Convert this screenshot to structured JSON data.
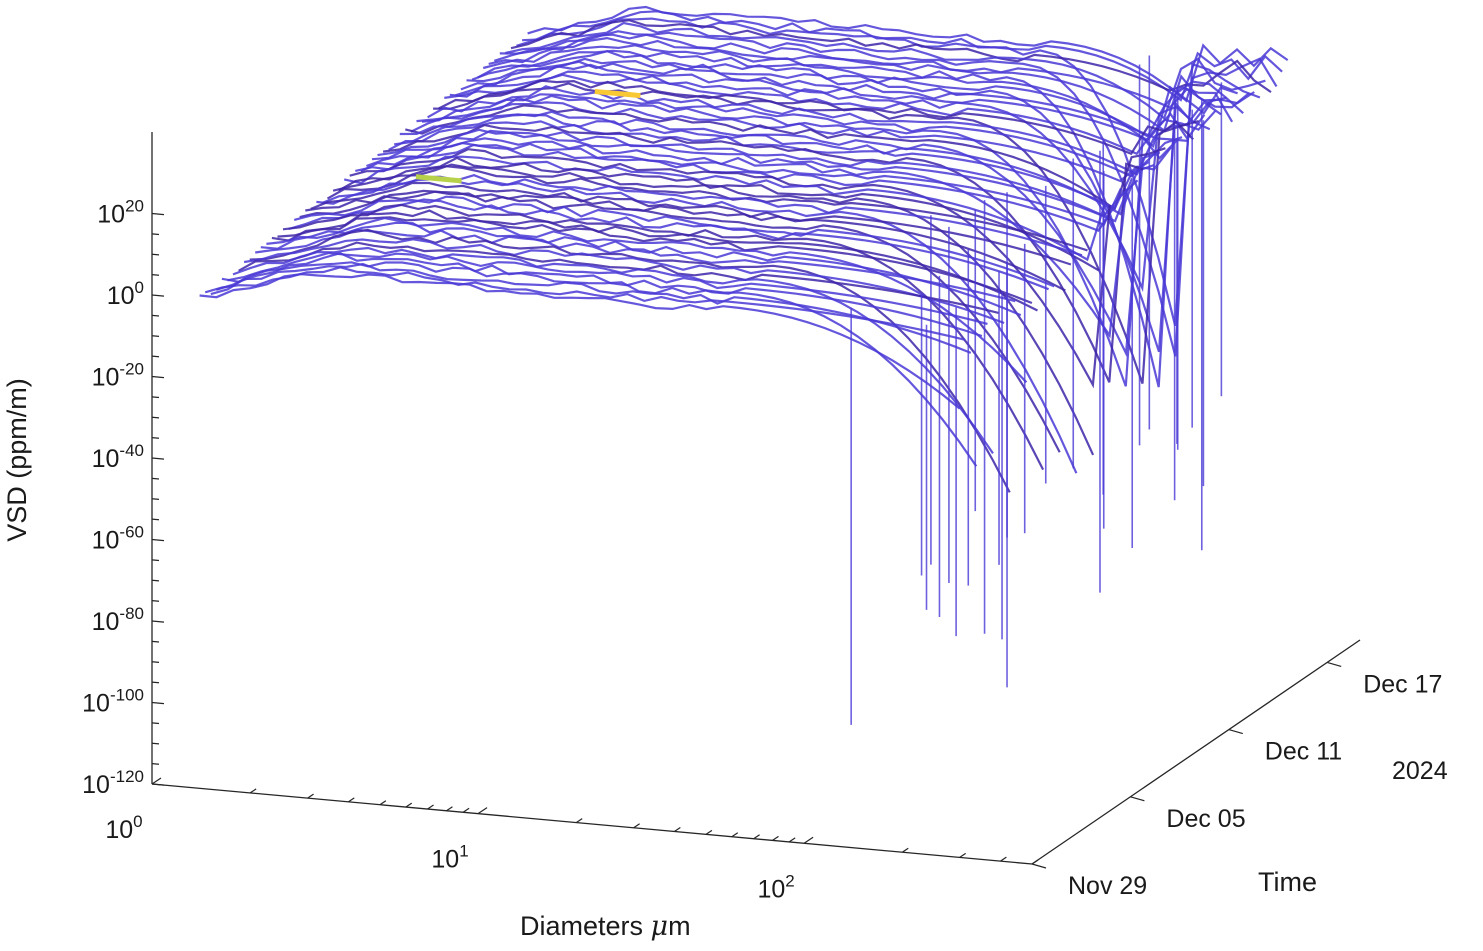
{
  "chart_data": {
    "type": "surface",
    "x_label_text": "Diameters ",
    "x_label_unit": "m",
    "x_label_mu": "μ",
    "ylabel": "Time",
    "zlabel": "VSD (ppm/m)",
    "z_scale": "log",
    "x_scale": "log",
    "z_ticks": [
      {
        "base": "10",
        "exp": "20"
      },
      {
        "base": "10",
        "exp": "0"
      },
      {
        "base": "10",
        "exp": "-20"
      },
      {
        "base": "10",
        "exp": "-40"
      },
      {
        "base": "10",
        "exp": "-60"
      },
      {
        "base": "10",
        "exp": "-80"
      },
      {
        "base": "10",
        "exp": "-100"
      },
      {
        "base": "10",
        "exp": "-120"
      }
    ],
    "x_ticks": [
      {
        "base": "10",
        "exp": "0"
      },
      {
        "base": "10",
        "exp": "1"
      },
      {
        "base": "10",
        "exp": "2"
      }
    ],
    "time_ticks": [
      "Nov 29",
      "Dec 05",
      "Dec 11",
      "Dec 17"
    ],
    "time_year": "2024",
    "x_range_um": [
      1,
      500
    ],
    "time_range": [
      "2024-11-29",
      "2024-12-19"
    ],
    "z_range_log10": [
      -120,
      40
    ],
    "plateau_log10": {
      "small_d": 0,
      "mid_d": 10,
      "rise_peak_log10": 5
    },
    "drop_minima_log10": [
      -60,
      -90,
      -92,
      -75,
      -70,
      -65,
      -58,
      -80,
      -74,
      -66,
      -72,
      -78
    ],
    "hotspots": [
      {
        "diameter_um": 4.2,
        "time": "2024-12-15",
        "level": "max"
      },
      {
        "diameter_um": 3.0,
        "time": "2024-12-07",
        "level": "high"
      }
    ],
    "colormap": [
      "#3e26a8",
      "#4a3ad6",
      "#3b6cf7",
      "#1fa9e0",
      "#2fcfa0",
      "#b7d24a",
      "#f9c935"
    ]
  }
}
